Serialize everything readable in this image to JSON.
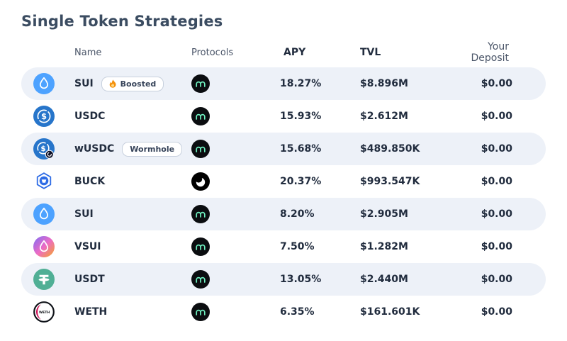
{
  "page": {
    "title": "Single Token Strategies"
  },
  "table": {
    "headers": [
      "Name",
      "Protocols",
      "APY",
      "TVL",
      "Your Deposit"
    ],
    "rows": [
      {
        "name": "SUI",
        "badge": "Boosted",
        "badge_icon": "flame",
        "token_icon": "sui",
        "protocol_icon": "navi",
        "apy": "18.27%",
        "tvl": "$8.896M",
        "deposit": "$0.00"
      },
      {
        "name": "USDC",
        "token_icon": "usdc",
        "protocol_icon": "navi",
        "apy": "15.93%",
        "tvl": "$2.612M",
        "deposit": "$0.00"
      },
      {
        "name": "wUSDC",
        "badge": "Wormhole",
        "token_icon": "wusdc",
        "protocol_icon": "navi",
        "apy": "15.68%",
        "tvl": "$489.850K",
        "deposit": "$0.00"
      },
      {
        "name": "BUCK",
        "token_icon": "buck",
        "protocol_icon": "bucket",
        "apy": "20.37%",
        "tvl": "$993.547K",
        "deposit": "$0.00"
      },
      {
        "name": "SUI",
        "token_icon": "sui",
        "protocol_icon": "navi",
        "apy": "8.20%",
        "tvl": "$2.905M",
        "deposit": "$0.00"
      },
      {
        "name": "VSUI",
        "token_icon": "vsui",
        "protocol_icon": "navi",
        "apy": "7.50%",
        "tvl": "$1.282M",
        "deposit": "$0.00"
      },
      {
        "name": "USDT",
        "token_icon": "usdt",
        "protocol_icon": "navi",
        "apy": "13.05%",
        "tvl": "$2.440M",
        "deposit": "$0.00"
      },
      {
        "name": "WETH",
        "token_icon": "weth",
        "protocol_icon": "navi",
        "apy": "6.35%",
        "tvl": "$161.601K",
        "deposit": "$0.00"
      }
    ]
  },
  "colors": {
    "row_alt_bg": "#edf1f8",
    "title_text": "#3b4c61",
    "header_text": "#4a5568",
    "value_text": "#212c3e",
    "sui_blue": "#4da2ff",
    "usdc_blue": "#2775ca",
    "usdt_green": "#50af95",
    "buck_blue": "#2d6be5",
    "navi_green": "#6ef0bf",
    "weth_crescent": "#cf1259",
    "flame_orange": "#f4900c"
  }
}
